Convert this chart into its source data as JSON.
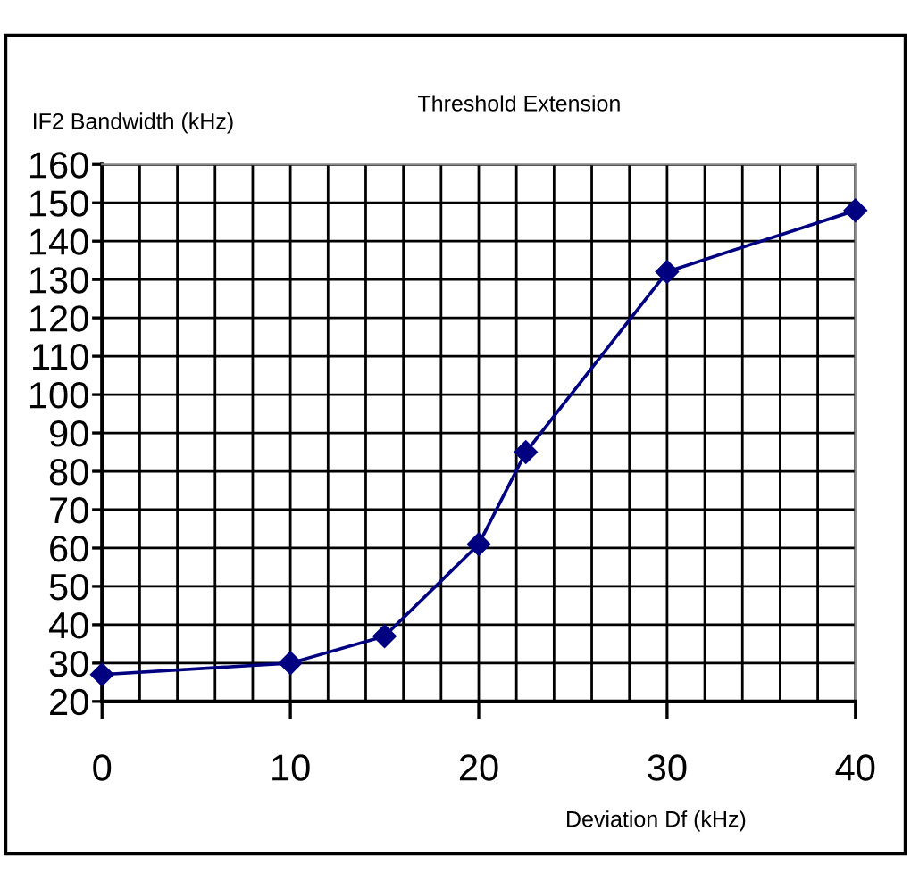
{
  "chart_data": {
    "type": "line",
    "title": "Threshold Extension",
    "xlabel": "Deviation Df (kHz)",
    "ylabel": "IF2 Bandwidth (kHz)",
    "x": [
      0,
      10,
      15,
      20,
      22.5,
      30,
      40
    ],
    "series": [
      {
        "color": "#000080",
        "values": [
          27,
          30,
          37,
          61,
          85,
          132,
          148
        ]
      }
    ],
    "marker": "diamond",
    "line_style": "solid",
    "grid": true,
    "xlim": [
      0,
      40
    ],
    "ylim": [
      20,
      160
    ],
    "xticks": [
      0,
      {
        "value": 2,
        "label": null
      },
      {
        "value": 4,
        "label": null
      },
      {
        "value": 6,
        "label": null
      },
      {
        "value": 8,
        "label": null
      },
      10,
      {
        "value": 12,
        "label": null
      },
      {
        "value": 14,
        "label": null
      },
      {
        "value": 16,
        "label": null
      },
      {
        "value": 18,
        "label": null
      },
      20,
      {
        "value": 22,
        "label": null
      },
      {
        "value": 24,
        "label": null
      },
      {
        "value": 26,
        "label": null
      },
      {
        "value": 28,
        "label": null
      },
      30,
      {
        "value": 32,
        "label": null
      },
      {
        "value": 34,
        "label": null
      },
      {
        "value": 36,
        "label": null
      },
      {
        "value": 38,
        "label": null
      },
      40
    ],
    "yticks": [
      20,
      30,
      40,
      50,
      60,
      70,
      80,
      90,
      100,
      110,
      120,
      130,
      140,
      150,
      160
    ]
  }
}
